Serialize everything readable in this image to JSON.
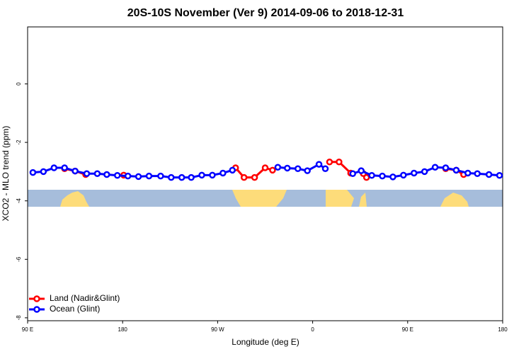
{
  "chart_data": {
    "type": "line",
    "title": "20S-10S November (Ver 9)   2014-09-06 to 2018-12-31",
    "x_label": "Longitude (deg E)",
    "y_label": "XCO2 - MLO trend (ppm)",
    "xlim": [
      90,
      540
    ],
    "ylim": [
      -8.1,
      1.95
    ],
    "xticks": [
      90,
      180,
      {
        "value": 270,
        "label": "90 W"
      },
      {
        "value": 360,
        "label": "0"
      },
      {
        "value": 450,
        "label": "90 E"
      },
      {
        "value": 540,
        "label": "180"
      }
    ],
    "xtick0_label": "90 E",
    "yticks": [
      0,
      -2,
      -4,
      -6,
      -8
    ],
    "legend": "bottom-left",
    "series": [
      {
        "name": "Land (Nadir&Glint)",
        "color": "#ff0000",
        "x": [
          125,
          135,
          145,
          null,
          181,
          null,
          287,
          295,
          305,
          315,
          322,
          null,
          376,
          385,
          396,
          null,
          408,
          411,
          null,
          486,
          496,
          503
        ],
        "values": [
          -2.9,
          -2.98,
          -3.1,
          null,
          -3.12,
          null,
          -2.87,
          -3.2,
          -3.2,
          -2.87,
          -2.95,
          null,
          -2.67,
          -2.67,
          -3.05,
          null,
          -3.07,
          -3.2,
          null,
          -2.9,
          -2.95,
          -3.1
        ]
      },
      {
        "name": "Ocean (Glint)",
        "color": "#0000ff",
        "x": [
          95,
          105,
          115,
          125,
          135,
          146,
          156,
          165,
          175,
          185,
          195,
          205,
          216,
          226,
          236,
          245,
          255,
          265,
          275,
          284,
          null,
          327,
          336,
          346,
          355,
          366,
          372,
          null,
          398,
          406,
          416,
          426,
          436,
          446,
          456,
          466,
          476,
          486,
          496,
          507,
          516,
          527,
          537
        ],
        "values": [
          -3.03,
          -3.0,
          -2.87,
          -2.87,
          -2.98,
          -3.07,
          -3.07,
          -3.1,
          -3.13,
          -3.15,
          -3.17,
          -3.15,
          -3.15,
          -3.2,
          -3.2,
          -3.2,
          -3.12,
          -3.12,
          -3.05,
          -2.95,
          null,
          -2.85,
          -2.88,
          -2.9,
          -2.97,
          -2.75,
          -2.9,
          null,
          -3.07,
          -2.97,
          -3.13,
          -3.15,
          -3.18,
          -3.12,
          -3.05,
          -3.0,
          -2.85,
          -2.87,
          -2.95,
          -3.05,
          -3.07,
          -3.1,
          -3.13
        ]
      }
    ]
  }
}
